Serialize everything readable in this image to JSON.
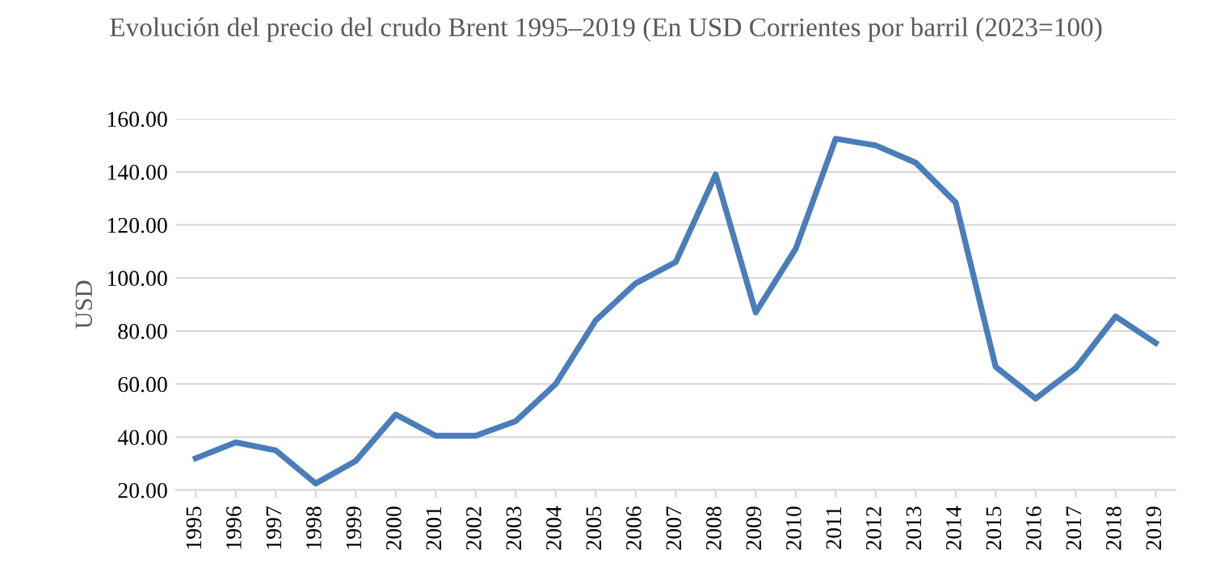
{
  "chart_data": {
    "type": "line",
    "title": "Evolución del precio del crudo Brent 1995–2019 (En USD Corrientes por barril (2023=100)",
    "ylabel": "USD",
    "categories": [
      "1995",
      "1996",
      "1997",
      "1998",
      "1999",
      "2000",
      "2001",
      "2002",
      "2003",
      "2004",
      "2005",
      "2006",
      "2007",
      "2008",
      "2009",
      "2010",
      "2011",
      "2012",
      "2013",
      "2014",
      "2015",
      "2016",
      "2017",
      "2018",
      "2019"
    ],
    "series": [
      {
        "color": "#4a7ebb",
        "values": [
          32,
          38,
          35,
          22.5,
          31,
          48.5,
          40.5,
          40.5,
          46,
          60,
          84,
          98,
          106,
          139,
          87,
          111,
          152.5,
          150,
          143.5,
          128.5,
          66.5,
          54.5,
          66,
          85.5,
          75.5
        ]
      }
    ],
    "ylim": [
      20,
      160
    ],
    "yticks": [
      {
        "value": 20,
        "label": "20.00"
      },
      {
        "value": 40,
        "label": "40.00"
      },
      {
        "value": 60,
        "label": "60.00"
      },
      {
        "value": 80,
        "label": "80.00"
      },
      {
        "value": 100,
        "label": "100.00"
      },
      {
        "value": 120,
        "label": "120.00"
      },
      {
        "value": 140,
        "label": "140.00"
      },
      {
        "value": 160,
        "label": "160.00"
      }
    ],
    "grid": "y",
    "legend": false,
    "marker": "none",
    "line_style": "solid"
  }
}
